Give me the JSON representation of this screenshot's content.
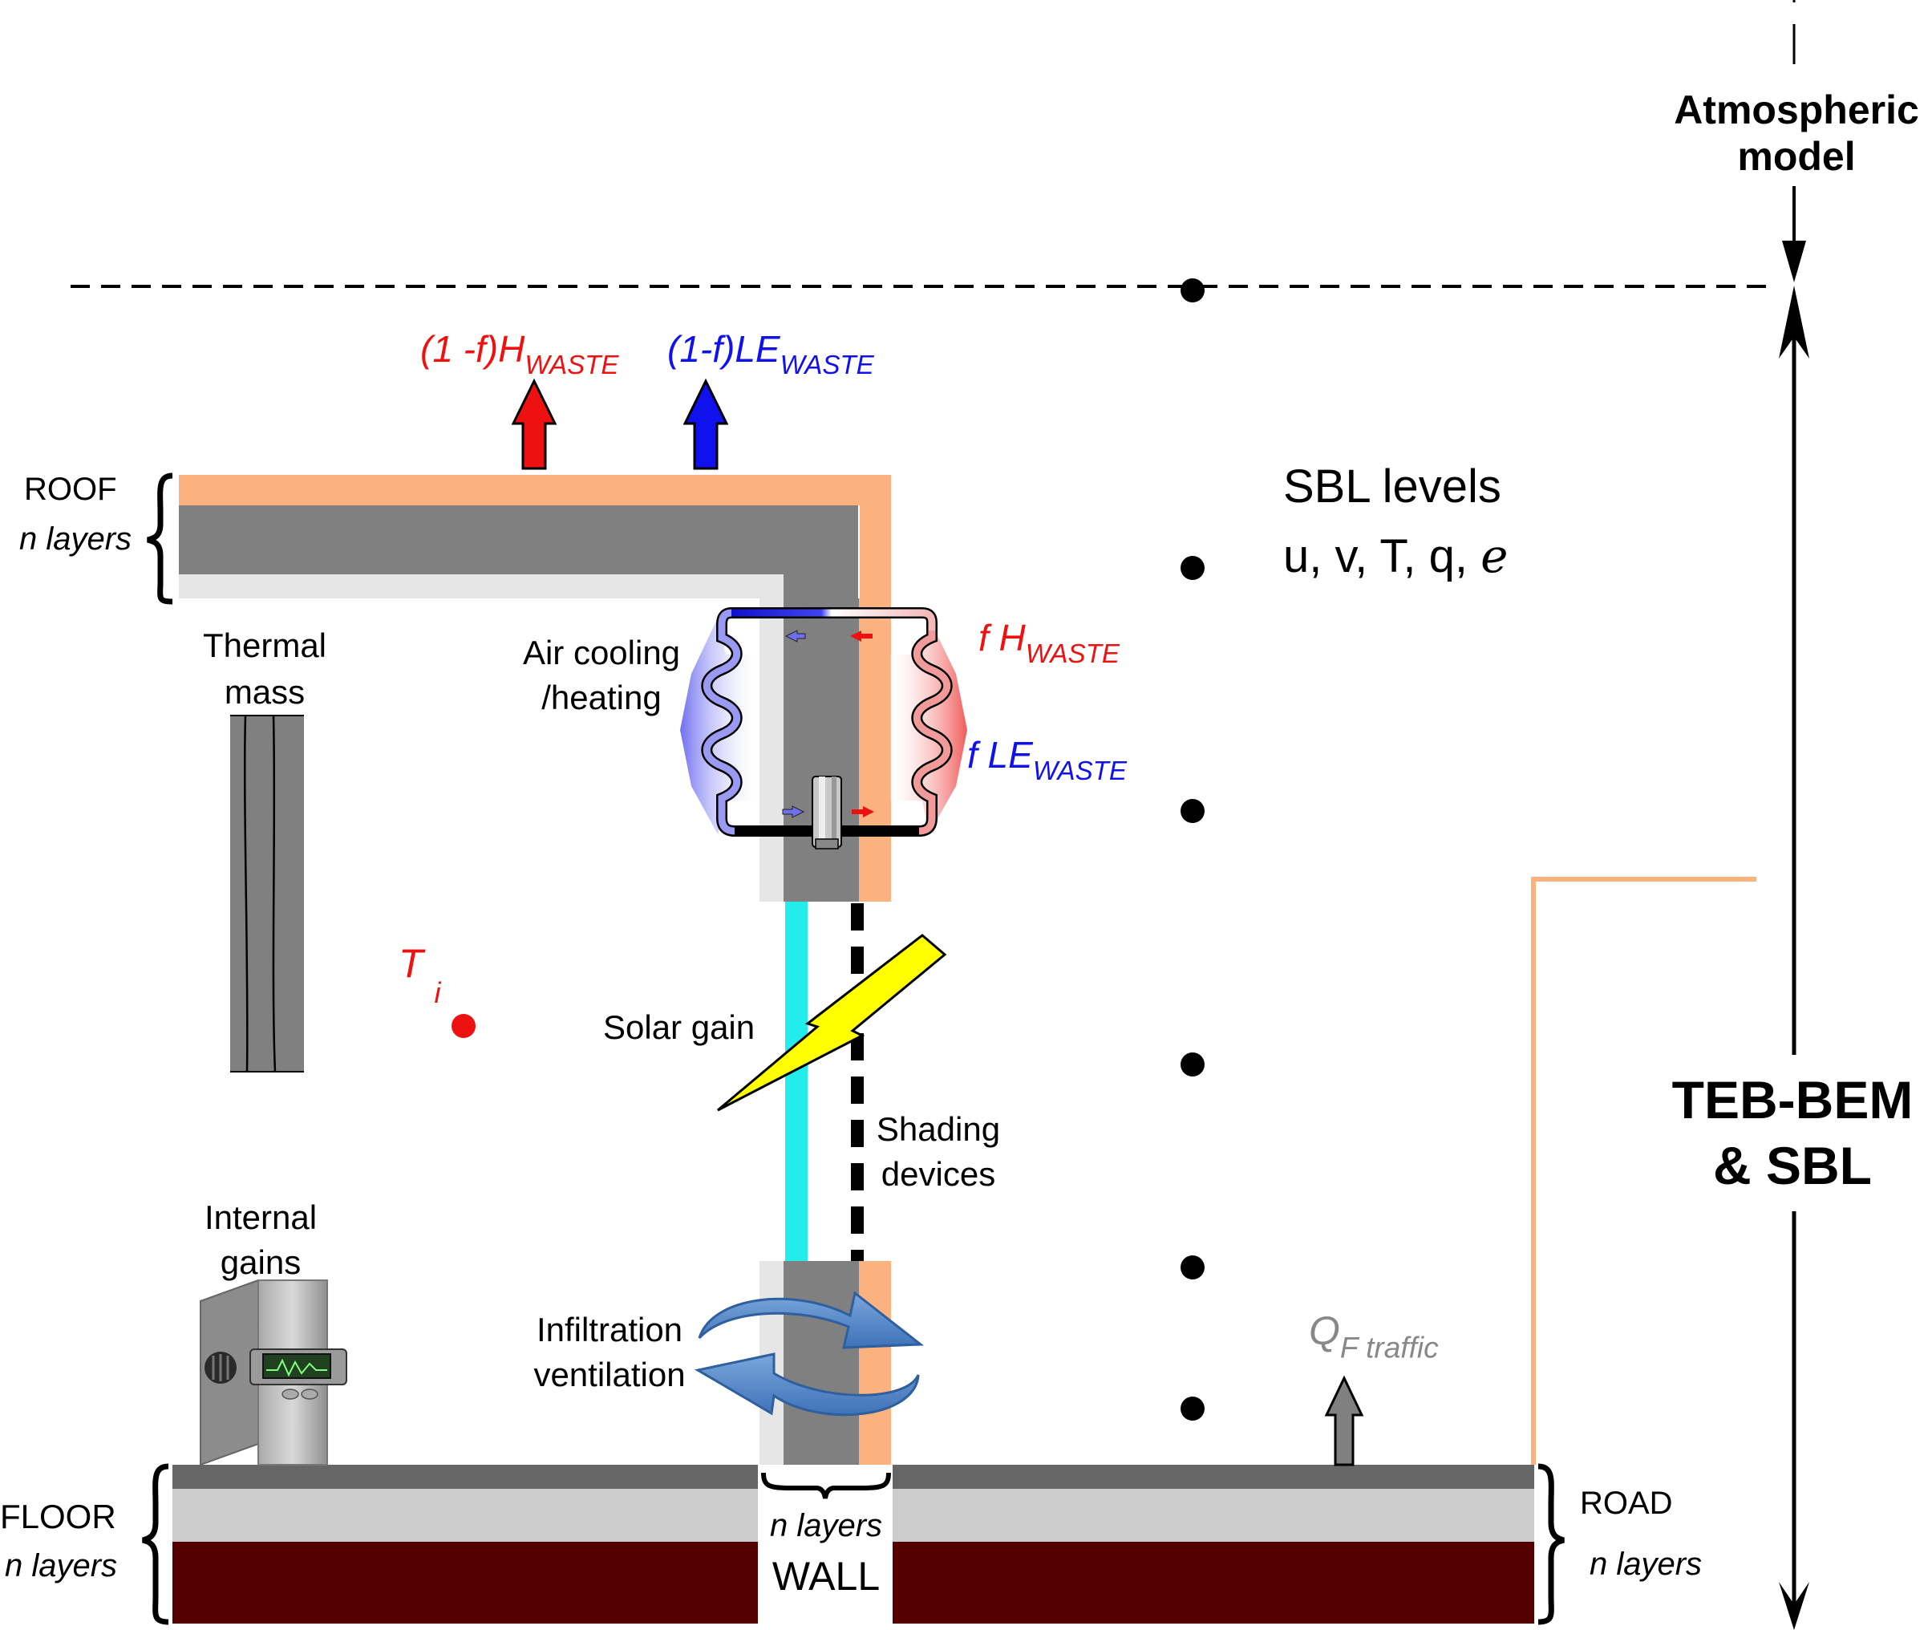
{
  "labels": {
    "atmospheric_model": [
      "Atmospheric",
      "model"
    ],
    "roof": "ROOF",
    "roof_layers": "n layers",
    "thermal_mass": [
      "Thermal",
      "mass"
    ],
    "air_cooling": [
      "Air cooling",
      "/heating"
    ],
    "solar_gain": "Solar gain",
    "shading_devices": [
      "Shading",
      "devices"
    ],
    "internal_gains": [
      "Internal",
      "gains"
    ],
    "infiltration": [
      "Infiltration",
      "ventilation"
    ],
    "floor": "FLOOR",
    "floor_layers": "n layers",
    "wall_layers": "n layers",
    "wall": "WALL",
    "road": "ROAD",
    "road_layers": "n layers",
    "sbl_levels": "SBL levels",
    "sbl_vars": "u, v, T, q,",
    "sbl_var_e": "e",
    "teb_bem": [
      "TEB-BEM",
      "& SBL"
    ],
    "waste_heat_roof": {
      "main": "(1 -f)H",
      "sub": "WASTE"
    },
    "waste_latent_roof": {
      "main": "(1-f)LE",
      "sub": "WASTE"
    },
    "f_h_waste": {
      "main": "f H",
      "sub": "WASTE"
    },
    "f_le_waste": {
      "main": "f LE",
      "sub": "WASTE"
    },
    "t_i": {
      "main": "T",
      "sub": "i"
    },
    "q_f_traffic": {
      "main": "Q",
      "sub": "F traffic"
    }
  },
  "colors": {
    "roof_outer": "#fcb27e",
    "wall_core": "#808080",
    "inner_layer": "#e6e6e6",
    "window": "#22ecec",
    "floor_top": "#666666",
    "floor_mid": "#cccccc",
    "soil": "#550000",
    "heat_red": "#ee1111",
    "latent_blue": "#1111ee",
    "traffic_grey": "#808080",
    "solar_yellow": "#ffff00",
    "ventilation_blue": "#5a8fcf"
  },
  "icons": [
    "sbl-level-dot-icon",
    "computer-tower-icon",
    "compressor-icon",
    "solar-bolt-icon",
    "ventilation-arrows-icon"
  ]
}
